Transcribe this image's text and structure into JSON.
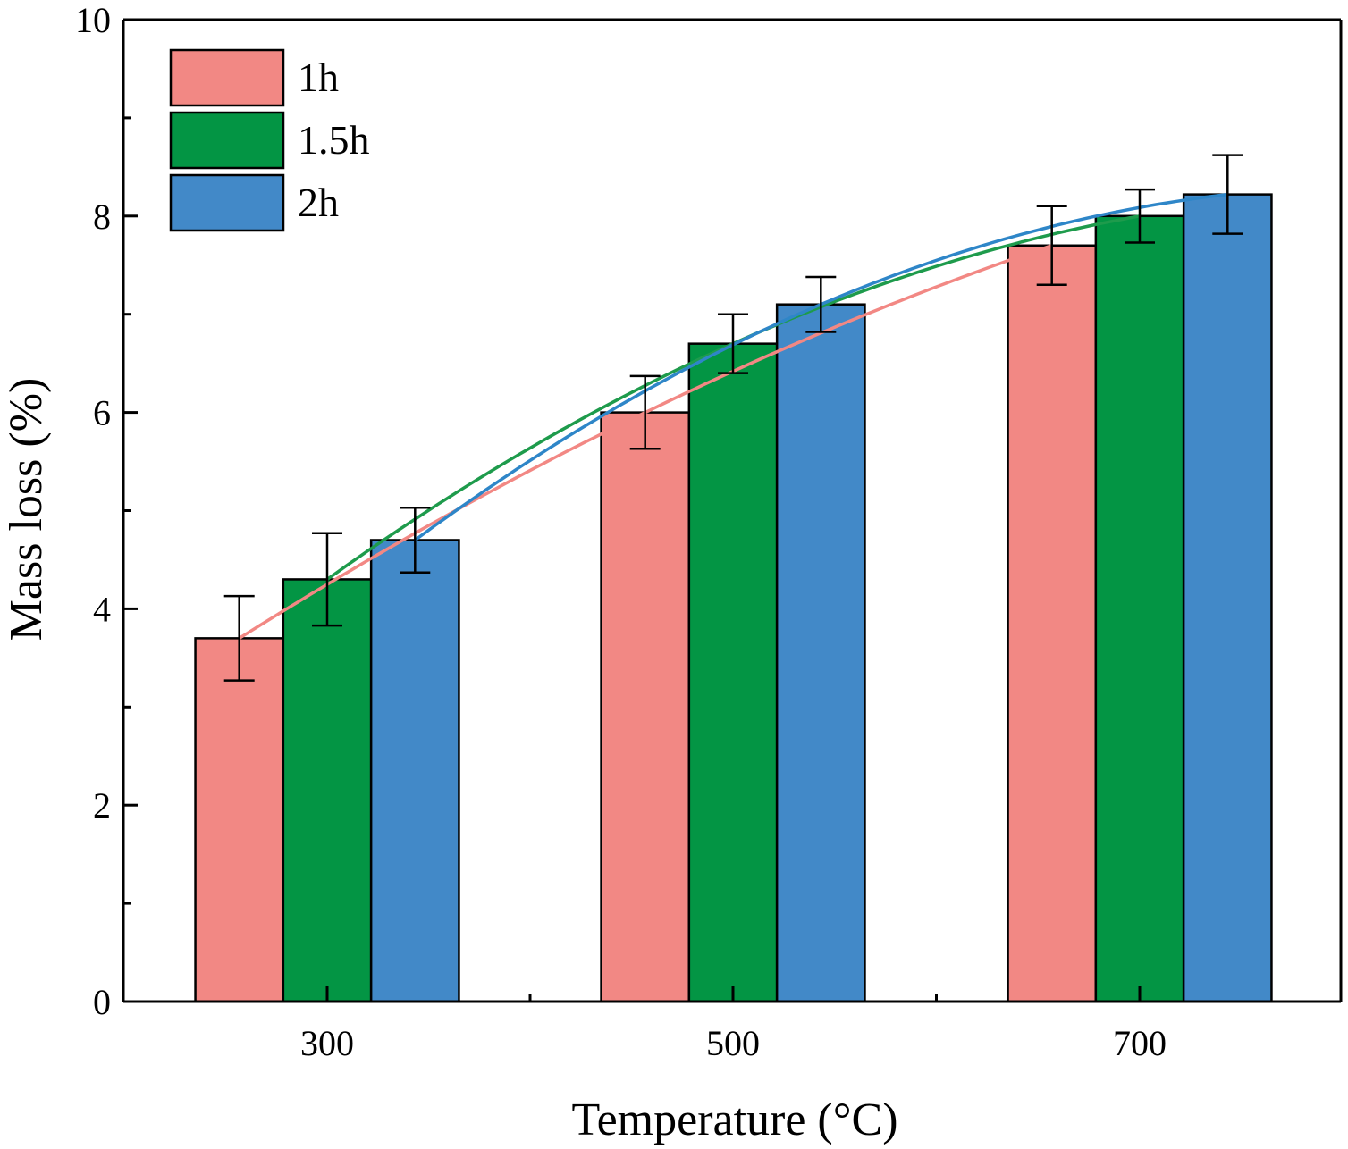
{
  "chart_data": {
    "type": "bar",
    "title": "",
    "xlabel": "Temperature (°C)",
    "ylabel": "Mass loss (%)",
    "categories": [
      "300",
      "500",
      "700"
    ],
    "ylim": [
      0,
      10
    ],
    "yticks": [
      0,
      2,
      4,
      6,
      8,
      10
    ],
    "y_tick_labels": [
      "0",
      "2",
      "4",
      "6",
      "8",
      "10"
    ],
    "legend_position": "top-left",
    "grid": false,
    "series": [
      {
        "name": "1h",
        "color": "#F28884",
        "line_color": "#F28884",
        "values": [
          3.7,
          6.0,
          7.7
        ],
        "errors": [
          0.43,
          0.37,
          0.4
        ]
      },
      {
        "name": "1.5h",
        "color": "#039544",
        "line_color": "#1E9B4C",
        "values": [
          4.3,
          6.7,
          8.0
        ],
        "errors": [
          0.47,
          0.3,
          0.27
        ]
      },
      {
        "name": "2h",
        "color": "#4289C8",
        "line_color": "#2E86C8",
        "values": [
          4.7,
          7.1,
          8.22
        ],
        "errors": [
          0.33,
          0.28,
          0.4
        ]
      }
    ]
  }
}
